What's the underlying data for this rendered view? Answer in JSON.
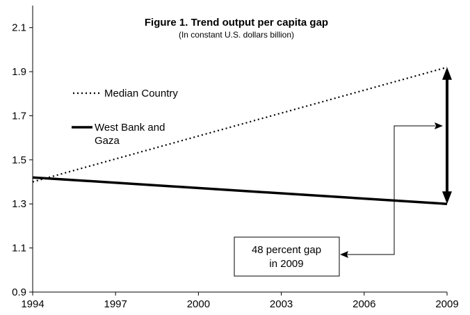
{
  "chart_data": {
    "type": "line",
    "title": "Figure 1. Trend output per capita gap",
    "subtitle": "(In constant U.S. dollars billion)",
    "xlabel": "",
    "ylabel": "",
    "xlim": [
      1994,
      2009
    ],
    "ylim": [
      0.9,
      2.2
    ],
    "x_ticks": [
      "1994",
      "1997",
      "2000",
      "2003",
      "2006",
      "2009"
    ],
    "y_ticks": [
      "0.9",
      "1.1",
      "1.3",
      "1.5",
      "1.7",
      "1.9",
      "2.1"
    ],
    "grid": false,
    "legend_position": "upper-left",
    "series": [
      {
        "name": "Median Country",
        "style": "dotted",
        "x": [
          1994,
          2009
        ],
        "y": [
          1.4,
          1.92
        ]
      },
      {
        "name": "West Bank and Gaza",
        "style": "solid",
        "x": [
          1994,
          2009
        ],
        "y": [
          1.42,
          1.3
        ]
      }
    ],
    "annotation": {
      "text_line1": "48  percent gap",
      "text_line2": "in 2009",
      "gap_year": 2009
    }
  }
}
